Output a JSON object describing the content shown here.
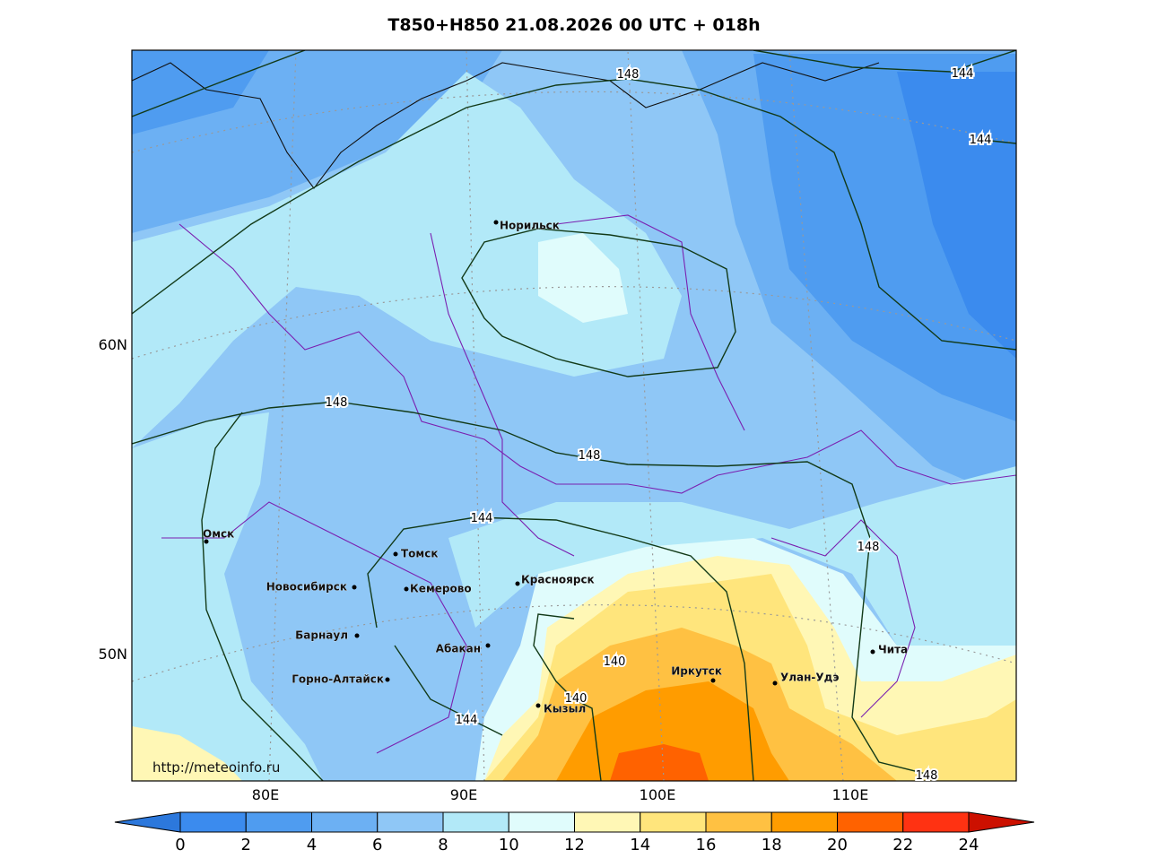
{
  "title": "T850+H850 21.08.2026 00 UTC + 018h",
  "lat_labels": [
    "60N",
    "50N"
  ],
  "lon_labels": [
    "80E",
    "90E",
    "100E",
    "110E"
  ],
  "cities": [
    "Норильск",
    "Омск",
    "Томск",
    "Новосибирск",
    "Кемерово",
    "Красноярск",
    "Барнаул",
    "Абакан",
    "Горно-Алтайск",
    "Иркутск",
    "Улан-Удэ",
    "Кызыл",
    "Чита"
  ],
  "contour_labels": [
    "148",
    "144",
    "144",
    "148",
    "148",
    "144",
    "148",
    "140",
    "140",
    "144",
    "148"
  ],
  "source": "http://meteoinfo.ru",
  "colorbar": {
    "levels": [
      0,
      2,
      4,
      6,
      8,
      10,
      12,
      14,
      16,
      18,
      20,
      22,
      24
    ],
    "colors": [
      "#2c78dc",
      "#3b8bee",
      "#4f9cf0",
      "#6cb0f3",
      "#8fc7f6",
      "#b2e9f8",
      "#e0fcfc",
      "#fff7b5",
      "#ffe57c",
      "#ffc142",
      "#ff9c00",
      "#ff6200",
      "#ff3212",
      "#cc1000"
    ]
  }
}
